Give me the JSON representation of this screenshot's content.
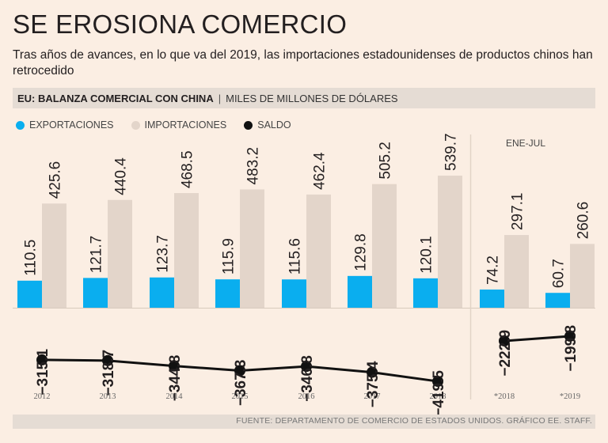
{
  "title": "SE EROSIONA COMERCIO",
  "subtitle": "Tras años de avances, en lo que va del 2019, las importaciones estadounidenses de productos chinos han retrocedido",
  "header": {
    "main": "EU: BALANZA COMERCIAL CON CHINA",
    "separator": "|",
    "unit": "MILES DE MILLONES DE DÓLARES"
  },
  "legend": [
    {
      "label": "EXPORTACIONES",
      "color": "#0aaeef"
    },
    {
      "label": "IMPORTACIONES",
      "color": "#e3d5ca"
    },
    {
      "label": "SALDO",
      "color": "#111111"
    }
  ],
  "period_label": "ENE-JUL",
  "footer": "FUENTE: DEPARTAMENTO DE COMERCIO DE ESTADOS UNIDOS. GRÁFICO EE. STAFF.",
  "chart_data": {
    "type": "bar",
    "categories": [
      "2012",
      "2013",
      "2014",
      "2015",
      "2016",
      "2017",
      "2018",
      "*2018",
      "*2019"
    ],
    "series": [
      {
        "name": "EXPORTACIONES",
        "values": [
          110.5,
          121.7,
          123.7,
          115.9,
          115.6,
          129.8,
          120.1,
          74.2,
          60.7
        ],
        "color": "#0aaeef"
      },
      {
        "name": "IMPORTACIONES",
        "values": [
          425.6,
          440.4,
          468.5,
          483.2,
          462.4,
          505.2,
          539.7,
          297.1,
          260.6
        ],
        "color": "#e3d5ca"
      },
      {
        "name": "SALDO",
        "values": [
          -315.1,
          -318.7,
          -344.8,
          -367.3,
          -346.8,
          -375.4,
          -419.5,
          -222.9,
          -199.8
        ],
        "color": "#111111"
      }
    ],
    "labels": {
      "exports": [
        "110.5",
        "121.7",
        "123.7",
        "115.9",
        "115.6",
        "129.8",
        "120.1",
        "74.2",
        "60.7"
      ],
      "imports": [
        "425.6",
        "440.4",
        "468.5",
        "483.2",
        "462.4",
        "505.2",
        "539.7",
        "297.1",
        "260.6"
      ],
      "balance": [
        "−315.1",
        "−318.7",
        "−344.8",
        "−367.3",
        "−346.8",
        "−375.4",
        "−419.5",
        "−222.9",
        "−199.8"
      ]
    },
    "groups": [
      {
        "indices": [
          0,
          1,
          2,
          3,
          4,
          5,
          6
        ]
      },
      {
        "indices": [
          7,
          8
        ]
      }
    ]
  }
}
